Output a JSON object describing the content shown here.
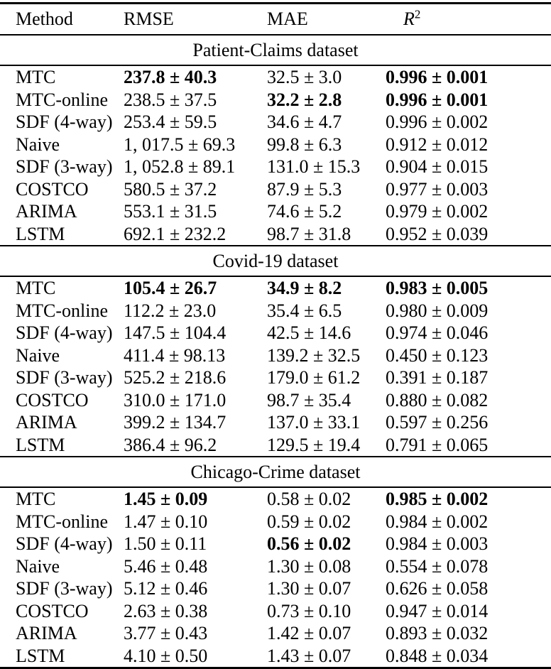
{
  "table": {
    "columns": {
      "method": "Method",
      "rmse": "RMSE",
      "mae": "MAE",
      "r2_base": "R",
      "r2_sup": "2"
    },
    "colors": {
      "text": "#000000",
      "background": "#ffffff",
      "rule": "#000000"
    },
    "sections": [
      {
        "title": "Patient-Claims dataset",
        "rows": [
          {
            "method": "MTC",
            "cells": [
              {
                "text": "237.8 ± 40.3",
                "bold": true
              },
              {
                "text": "32.5 ± 3.0",
                "bold": false
              },
              {
                "text": "0.996 ± 0.001",
                "bold": true
              }
            ]
          },
          {
            "method": "MTC-online",
            "cells": [
              {
                "text": "238.5 ± 37.5",
                "bold": false
              },
              {
                "text": "32.2 ± 2.8",
                "bold": true
              },
              {
                "text": "0.996 ± 0.001",
                "bold": true
              }
            ]
          },
          {
            "method": "SDF (4-way)",
            "cells": [
              {
                "text": "253.4 ± 59.5",
                "bold": false
              },
              {
                "text": "34.6 ± 4.7",
                "bold": false
              },
              {
                "text": "0.996 ± 0.002",
                "bold": false
              }
            ]
          },
          {
            "method": "Naive",
            "cells": [
              {
                "text": "1, 017.5 ± 69.3",
                "bold": false
              },
              {
                "text": "99.8 ± 6.3",
                "bold": false
              },
              {
                "text": "0.912 ± 0.012",
                "bold": false
              }
            ]
          },
          {
            "method": "SDF (3-way)",
            "cells": [
              {
                "text": "1, 052.8 ± 89.1",
                "bold": false
              },
              {
                "text": "131.0 ± 15.3",
                "bold": false
              },
              {
                "text": "0.904 ± 0.015",
                "bold": false
              }
            ]
          },
          {
            "method": "COSTCO",
            "cells": [
              {
                "text": "580.5 ± 37.2",
                "bold": false
              },
              {
                "text": "87.9 ± 5.3",
                "bold": false
              },
              {
                "text": "0.977 ± 0.003",
                "bold": false
              }
            ]
          },
          {
            "method": "ARIMA",
            "cells": [
              {
                "text": "553.1 ± 31.5",
                "bold": false
              },
              {
                "text": "74.6 ± 5.2",
                "bold": false
              },
              {
                "text": "0.979 ± 0.002",
                "bold": false
              }
            ]
          },
          {
            "method": "LSTM",
            "cells": [
              {
                "text": "692.1 ± 232.2",
                "bold": false
              },
              {
                "text": "98.7 ± 31.8",
                "bold": false
              },
              {
                "text": "0.952 ± 0.039",
                "bold": false
              }
            ]
          }
        ]
      },
      {
        "title": "Covid-19 dataset",
        "rows": [
          {
            "method": "MTC",
            "cells": [
              {
                "text": "105.4 ± 26.7",
                "bold": true
              },
              {
                "text": "34.9 ± 8.2",
                "bold": true
              },
              {
                "text": "0.983 ± 0.005",
                "bold": true
              }
            ]
          },
          {
            "method": "MTC-online",
            "cells": [
              {
                "text": "112.2 ± 23.0",
                "bold": false
              },
              {
                "text": "35.4 ± 6.5",
                "bold": false
              },
              {
                "text": "0.980 ± 0.009",
                "bold": false
              }
            ]
          },
          {
            "method": "SDF (4-way)",
            "cells": [
              {
                "text": "147.5 ± 104.4",
                "bold": false
              },
              {
                "text": "42.5 ± 14.6",
                "bold": false
              },
              {
                "text": "0.974 ± 0.046",
                "bold": false
              }
            ]
          },
          {
            "method": "Naive",
            "cells": [
              {
                "text": "411.4 ± 98.13",
                "bold": false
              },
              {
                "text": "139.2 ± 32.5",
                "bold": false
              },
              {
                "text": "0.450 ± 0.123",
                "bold": false
              }
            ]
          },
          {
            "method": "SDF (3-way)",
            "cells": [
              {
                "text": "525.2 ± 218.6",
                "bold": false
              },
              {
                "text": "179.0 ± 61.2",
                "bold": false
              },
              {
                "text": "0.391 ± 0.187",
                "bold": false
              }
            ]
          },
          {
            "method": "COSTCO",
            "cells": [
              {
                "text": "310.0 ± 171.0",
                "bold": false
              },
              {
                "text": "98.7 ± 35.4",
                "bold": false
              },
              {
                "text": "0.880 ± 0.082",
                "bold": false
              }
            ]
          },
          {
            "method": "ARIMA",
            "cells": [
              {
                "text": "399.2 ± 134.7",
                "bold": false
              },
              {
                "text": "137.0 ± 33.1",
                "bold": false
              },
              {
                "text": "0.597 ± 0.256",
                "bold": false
              }
            ]
          },
          {
            "method": "LSTM",
            "cells": [
              {
                "text": "386.4 ± 96.2",
                "bold": false
              },
              {
                "text": "129.5 ± 19.4",
                "bold": false
              },
              {
                "text": "0.791 ± 0.065",
                "bold": false
              }
            ]
          }
        ]
      },
      {
        "title": "Chicago-Crime dataset",
        "rows": [
          {
            "method": "MTC",
            "cells": [
              {
                "text": "1.45 ± 0.09",
                "bold": true
              },
              {
                "text": "0.58 ± 0.02",
                "bold": false
              },
              {
                "text": "0.985 ± 0.002",
                "bold": true
              }
            ]
          },
          {
            "method": "MTC-online",
            "cells": [
              {
                "text": "1.47 ± 0.10",
                "bold": false
              },
              {
                "text": "0.59 ± 0.02",
                "bold": false
              },
              {
                "text": "0.984 ± 0.002",
                "bold": false
              }
            ]
          },
          {
            "method": "SDF (4-way)",
            "cells": [
              {
                "text": "1.50 ± 0.11",
                "bold": false
              },
              {
                "text": "0.56 ± 0.02",
                "bold": true
              },
              {
                "text": "0.984 ± 0.003",
                "bold": false
              }
            ]
          },
          {
            "method": "Naive",
            "cells": [
              {
                "text": "5.46 ± 0.48",
                "bold": false
              },
              {
                "text": "1.30 ± 0.08",
                "bold": false
              },
              {
                "text": "0.554 ± 0.078",
                "bold": false
              }
            ]
          },
          {
            "method": "SDF (3-way)",
            "cells": [
              {
                "text": "5.12 ± 0.46",
                "bold": false
              },
              {
                "text": "1.30 ± 0.07",
                "bold": false
              },
              {
                "text": "0.626 ± 0.058",
                "bold": false
              }
            ]
          },
          {
            "method": "COSTCO",
            "cells": [
              {
                "text": "2.63 ± 0.38",
                "bold": false
              },
              {
                "text": "0.73 ± 0.10",
                "bold": false
              },
              {
                "text": "0.947 ± 0.014",
                "bold": false
              }
            ]
          },
          {
            "method": "ARIMA",
            "cells": [
              {
                "text": "3.77 ± 0.43",
                "bold": false
              },
              {
                "text": "1.42 ± 0.07",
                "bold": false
              },
              {
                "text": "0.893 ± 0.032",
                "bold": false
              }
            ]
          },
          {
            "method": "LSTM",
            "cells": [
              {
                "text": "4.10 ± 0.50",
                "bold": false
              },
              {
                "text": "1.43 ± 0.07",
                "bold": false
              },
              {
                "text": "0.848 ± 0.034",
                "bold": false
              }
            ]
          }
        ]
      }
    ]
  }
}
